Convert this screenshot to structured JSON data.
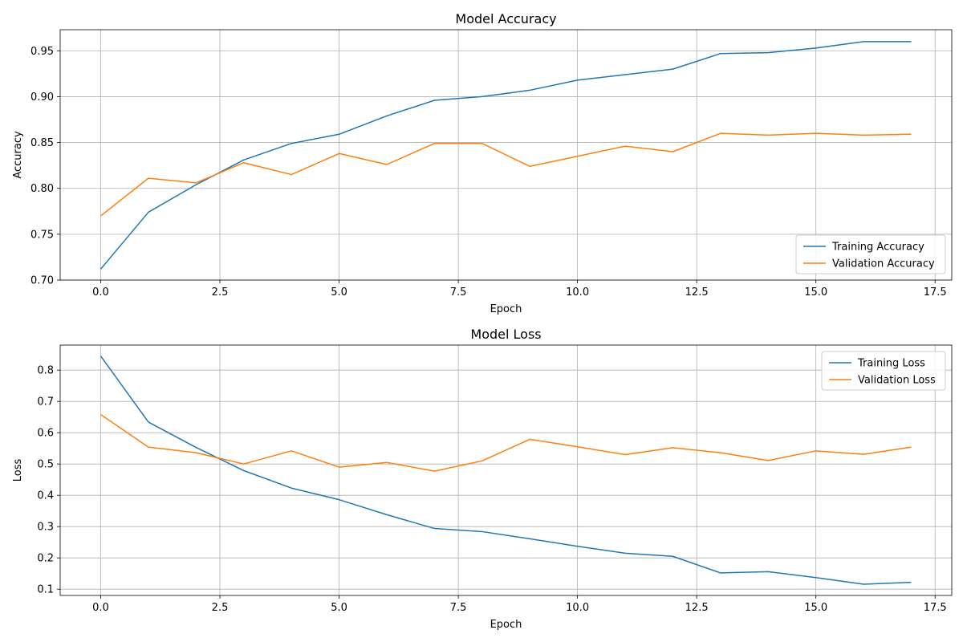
{
  "chart_data": [
    {
      "type": "line",
      "title": "Model Accuracy",
      "xlabel": "Epoch",
      "ylabel": "Accuracy",
      "xlim": [
        -0.85,
        17.85
      ],
      "ylim": [
        0.7,
        0.973
      ],
      "xticks": [
        "0.0",
        "2.5",
        "5.0",
        "7.5",
        "10.0",
        "12.5",
        "15.0",
        "17.5"
      ],
      "yticks": [
        "0.70",
        "0.75",
        "0.80",
        "0.85",
        "0.90",
        "0.95"
      ],
      "grid": true,
      "legend_position": "lower right",
      "x": [
        0,
        1,
        2,
        3,
        4,
        5,
        6,
        7,
        8,
        9,
        10,
        11,
        12,
        13,
        14,
        15,
        16,
        17
      ],
      "series": [
        {
          "name": "Training Accuracy",
          "color": "#1f77b4",
          "values": [
            0.712,
            0.774,
            0.804,
            0.831,
            0.849,
            0.859,
            0.879,
            0.896,
            0.9,
            0.907,
            0.918,
            0.924,
            0.93,
            0.947,
            0.948,
            0.953,
            0.96,
            0.96
          ]
        },
        {
          "name": "Validation Accuracy",
          "color": "#ff7f0e",
          "values": [
            0.77,
            0.811,
            0.806,
            0.828,
            0.815,
            0.838,
            0.826,
            0.849,
            0.849,
            0.824,
            0.835,
            0.846,
            0.84,
            0.86,
            0.858,
            0.86,
            0.858,
            0.859
          ]
        }
      ]
    },
    {
      "type": "line",
      "title": "Model Loss",
      "xlabel": "Epoch",
      "ylabel": "Loss",
      "xlim": [
        -0.85,
        17.85
      ],
      "ylim": [
        0.08,
        0.88
      ],
      "xticks": [
        "0.0",
        "2.5",
        "5.0",
        "7.5",
        "10.0",
        "12.5",
        "15.0",
        "17.5"
      ],
      "yticks": [
        "0.1",
        "0.2",
        "0.3",
        "0.4",
        "0.5",
        "0.6",
        "0.7",
        "0.8"
      ],
      "grid": true,
      "legend_position": "upper right",
      "x": [
        0,
        1,
        2,
        3,
        4,
        5,
        6,
        7,
        8,
        9,
        10,
        11,
        12,
        13,
        14,
        15,
        16,
        17
      ],
      "series": [
        {
          "name": "Training Loss",
          "color": "#1f77b4",
          "values": [
            0.845,
            0.634,
            0.553,
            0.479,
            0.423,
            0.386,
            0.338,
            0.294,
            0.284,
            0.261,
            0.237,
            0.215,
            0.205,
            0.152,
            0.156,
            0.137,
            0.116,
            0.122
          ]
        },
        {
          "name": "Validation Loss",
          "color": "#ff7f0e",
          "values": [
            0.658,
            0.554,
            0.536,
            0.5,
            0.542,
            0.49,
            0.505,
            0.477,
            0.51,
            0.579,
            0.555,
            0.53,
            0.552,
            0.536,
            0.511,
            0.542,
            0.531,
            0.554
          ]
        }
      ]
    }
  ]
}
